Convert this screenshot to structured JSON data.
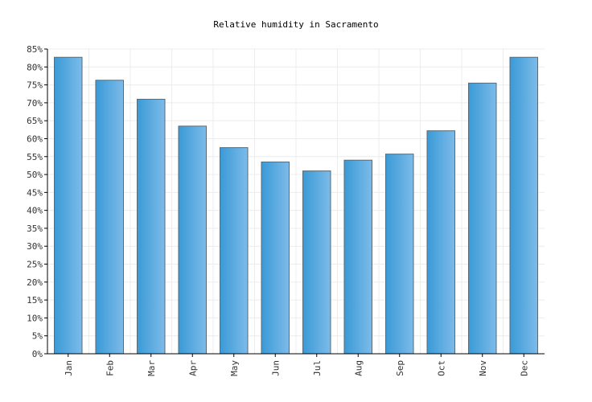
{
  "chart_data": {
    "type": "bar",
    "title": "Relative humidity in Sacramento",
    "xlabel": "",
    "ylabel": "",
    "categories": [
      "Jan",
      "Feb",
      "Mar",
      "Apr",
      "May",
      "Jun",
      "Jul",
      "Aug",
      "Sep",
      "Oct",
      "Nov",
      "Dec"
    ],
    "values": [
      82.7,
      76.3,
      71.0,
      63.5,
      57.5,
      53.5,
      51.0,
      54.0,
      55.7,
      62.2,
      75.5,
      82.7
    ],
    "ylim": [
      0,
      85
    ],
    "yticks": [
      0,
      5,
      10,
      15,
      20,
      25,
      30,
      35,
      40,
      45,
      50,
      55,
      60,
      65,
      70,
      75,
      80,
      85
    ],
    "ytick_suffix": "%",
    "grid": true,
    "bar_color_dark": "#3a9ad6",
    "bar_color_light": "#7dbbe9",
    "bar_stroke": "#5a6a76"
  }
}
